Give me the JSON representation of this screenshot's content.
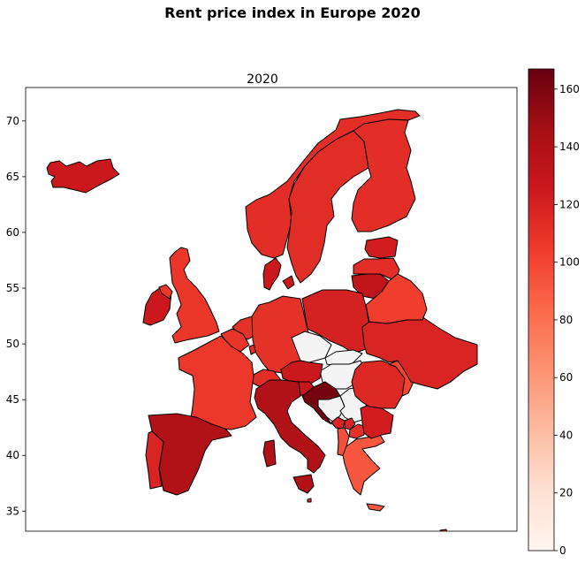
{
  "figure": {
    "suptitle": "Rent price index in Europe 2020"
  },
  "chart_data": {
    "type": "choropleth",
    "title": "2020",
    "xlabel": "",
    "ylabel": "",
    "y_ticks": [
      35,
      40,
      45,
      50,
      55,
      60,
      65,
      70
    ],
    "ylim": [
      33.2,
      73.0
    ],
    "xlim": [
      -25.5,
      45.0
    ],
    "colorbar": {
      "ticks": [
        0,
        20,
        40,
        60,
        80,
        100,
        120,
        140,
        160
      ],
      "range": [
        0,
        167
      ],
      "colors": [
        "#fff5f0",
        "#fee0d2",
        "#fcbba1",
        "#fc9272",
        "#fb6a4a",
        "#ef3b2c",
        "#cb181d",
        "#a50f15",
        "#67000d"
      ]
    },
    "no_data_color": "#f4f4f4",
    "regions": [
      {
        "name": "Iceland",
        "value": 126
      },
      {
        "name": "Norway",
        "value": 112
      },
      {
        "name": "Sweden",
        "value": 113
      },
      {
        "name": "Finland",
        "value": 112
      },
      {
        "name": "Estonia",
        "value": 122
      },
      {
        "name": "Latvia",
        "value": 112
      },
      {
        "name": "Lithuania",
        "value": 132
      },
      {
        "name": "Denmark",
        "value": 125
      },
      {
        "name": "Ireland",
        "value": 126
      },
      {
        "name": "United Kingdom",
        "value": 107
      },
      {
        "name": "Netherlands",
        "value": 110
      },
      {
        "name": "Belgium",
        "value": 108
      },
      {
        "name": "Luxembourg",
        "value": 112
      },
      {
        "name": "Germany",
        "value": 110
      },
      {
        "name": "Poland",
        "value": 120
      },
      {
        "name": "Czechia",
        "value": null
      },
      {
        "name": "Slovakia",
        "value": null
      },
      {
        "name": "Hungary",
        "value": null
      },
      {
        "name": "Austria",
        "value": 125
      },
      {
        "name": "Switzerland",
        "value": 112
      },
      {
        "name": "France",
        "value": 106
      },
      {
        "name": "Italy",
        "value": 140
      },
      {
        "name": "Slovenia",
        "value": 127
      },
      {
        "name": "Croatia",
        "value": 162
      },
      {
        "name": "Bosnia and Herzegovina",
        "value": null
      },
      {
        "name": "Serbia",
        "value": null
      },
      {
        "name": "Montenegro",
        "value": 118
      },
      {
        "name": "Kosovo",
        "value": 118
      },
      {
        "name": "North Macedonia",
        "value": 110
      },
      {
        "name": "Albania",
        "value": 95
      },
      {
        "name": "Greece",
        "value": 92
      },
      {
        "name": "Bulgaria",
        "value": 122
      },
      {
        "name": "Romania",
        "value": 115
      },
      {
        "name": "Moldova",
        "value": 100
      },
      {
        "name": "Ukraine",
        "value": 118
      },
      {
        "name": "Belarus",
        "value": 103
      },
      {
        "name": "Spain",
        "value": 140
      },
      {
        "name": "Portugal",
        "value": 118
      },
      {
        "name": "Malta",
        "value": 112
      },
      {
        "name": "Cyprus",
        "value": 105
      }
    ]
  }
}
